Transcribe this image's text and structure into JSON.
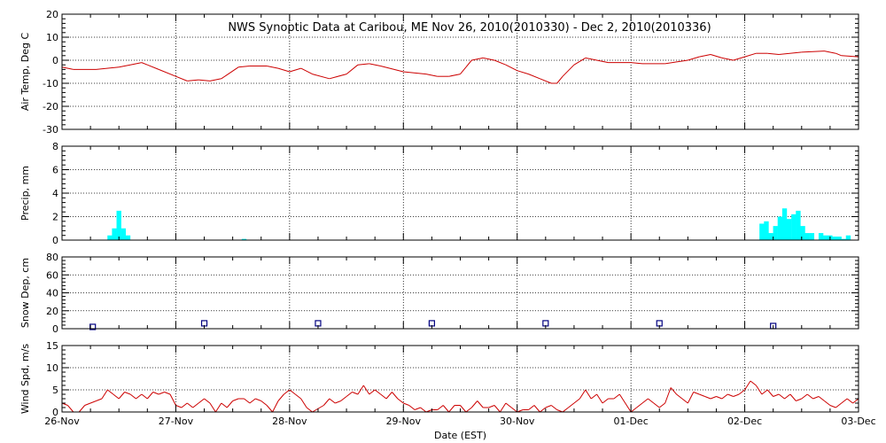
{
  "title": "NWS Synoptic Data at Caribou, ME   Nov 26, 2010(2010330) - Dec  2, 2010(2010336)",
  "xlabel": "Date (EST)",
  "x_ticks": [
    "26-Nov",
    "27-Nov",
    "28-Nov",
    "29-Nov",
    "30-Nov",
    "01-Dec",
    "02-Dec",
    "03-Dec"
  ],
  "colors": {
    "line": "#cc0000",
    "bar": "#00ffff",
    "marker": "#000080",
    "axes": "#000000",
    "grid": "#000000"
  },
  "chart_data": [
    {
      "type": "line",
      "ylabel": "Air Temp, Deg C",
      "ylim": [
        -30,
        20
      ],
      "y_ticks": [
        20,
        10,
        0,
        -10,
        -20,
        -30
      ],
      "x_unit": "days since 26-Nov 00:00 EST",
      "xlim": [
        0,
        7
      ],
      "grid": true,
      "series": [
        {
          "points": [
            [
              0.0,
              -3
            ],
            [
              0.1,
              -4
            ],
            [
              0.3,
              -4
            ],
            [
              0.5,
              -3
            ],
            [
              0.6,
              -2
            ],
            [
              0.7,
              -1
            ],
            [
              0.75,
              -2
            ],
            [
              0.85,
              -4
            ],
            [
              1.0,
              -7
            ],
            [
              1.1,
              -9
            ],
            [
              1.2,
              -8.5
            ],
            [
              1.3,
              -9
            ],
            [
              1.4,
              -8
            ],
            [
              1.55,
              -3
            ],
            [
              1.65,
              -2.5
            ],
            [
              1.8,
              -2.5
            ],
            [
              1.9,
              -3.5
            ],
            [
              2.0,
              -5
            ],
            [
              2.1,
              -3.5
            ],
            [
              2.2,
              -6
            ],
            [
              2.35,
              -8
            ],
            [
              2.5,
              -6
            ],
            [
              2.6,
              -2
            ],
            [
              2.7,
              -1.5
            ],
            [
              2.8,
              -2.5
            ],
            [
              3.0,
              -5
            ],
            [
              3.2,
              -6
            ],
            [
              3.3,
              -7
            ],
            [
              3.4,
              -7
            ],
            [
              3.5,
              -6
            ],
            [
              3.55,
              -3
            ],
            [
              3.6,
              0
            ],
            [
              3.7,
              1
            ],
            [
              3.8,
              0
            ],
            [
              3.9,
              -2
            ],
            [
              4.0,
              -4.5
            ],
            [
              4.1,
              -6
            ],
            [
              4.2,
              -8
            ],
            [
              4.3,
              -10
            ],
            [
              4.35,
              -10
            ],
            [
              4.4,
              -7
            ],
            [
              4.5,
              -2
            ],
            [
              4.6,
              1
            ],
            [
              4.7,
              0
            ],
            [
              4.8,
              -1
            ],
            [
              5.0,
              -1
            ],
            [
              5.1,
              -1.5
            ],
            [
              5.3,
              -1.5
            ],
            [
              5.5,
              0
            ],
            [
              5.6,
              1.5
            ],
            [
              5.7,
              2.5
            ],
            [
              5.8,
              1
            ],
            [
              5.9,
              0
            ],
            [
              6.0,
              1.5
            ],
            [
              6.1,
              3
            ],
            [
              6.2,
              3
            ],
            [
              6.3,
              2.5
            ],
            [
              6.5,
              3.5
            ],
            [
              6.7,
              4
            ],
            [
              6.8,
              3
            ],
            [
              6.85,
              2
            ],
            [
              7.0,
              1.5
            ]
          ]
        }
      ]
    },
    {
      "type": "bar",
      "ylabel": "Precip, mm",
      "ylim": [
        0,
        8
      ],
      "y_ticks": [
        8,
        6,
        4,
        2,
        0
      ],
      "x_unit": "days since 26-Nov 00:00 EST",
      "xlim": [
        0,
        7
      ],
      "grid": true,
      "bar_width_days": 0.0417,
      "series": [
        {
          "points": [
            [
              0.42,
              0.4
            ],
            [
              0.46,
              1.0
            ],
            [
              0.5,
              2.5
            ],
            [
              0.54,
              1.0
            ],
            [
              0.58,
              0.4
            ],
            [
              1.6,
              0.1
            ],
            [
              6.15,
              1.4
            ],
            [
              6.19,
              1.6
            ],
            [
              6.23,
              0.6
            ],
            [
              6.27,
              1.2
            ],
            [
              6.31,
              2.0
            ],
            [
              6.35,
              2.7
            ],
            [
              6.39,
              1.8
            ],
            [
              6.43,
              2.2
            ],
            [
              6.47,
              2.5
            ],
            [
              6.51,
              1.2
            ],
            [
              6.55,
              0.6
            ],
            [
              6.59,
              0.6
            ],
            [
              6.67,
              0.6
            ],
            [
              6.71,
              0.4
            ],
            [
              6.75,
              0.4
            ],
            [
              6.79,
              0.3
            ],
            [
              6.83,
              0.3
            ],
            [
              6.87,
              0.1
            ],
            [
              6.91,
              0.4
            ]
          ]
        }
      ]
    },
    {
      "type": "scatter",
      "ylabel": "Snow Dep, cm",
      "ylim": [
        0,
        80
      ],
      "y_ticks": [
        80,
        60,
        40,
        20,
        0
      ],
      "x_unit": "days since 26-Nov 00:00 EST",
      "xlim": [
        0,
        7
      ],
      "grid": true,
      "series": [
        {
          "points": [
            [
              0.27,
              2
            ],
            [
              1.25,
              6
            ],
            [
              2.25,
              6
            ],
            [
              3.25,
              6
            ],
            [
              4.25,
              6
            ],
            [
              5.25,
              6
            ],
            [
              6.25,
              3
            ]
          ]
        }
      ]
    },
    {
      "type": "line",
      "ylabel": "Wind Spd, m/s",
      "ylim": [
        0,
        15
      ],
      "y_ticks": [
        15,
        10,
        5,
        0
      ],
      "x_unit": "days since 26-Nov 00:00 EST",
      "xlim": [
        0,
        7
      ],
      "grid": true,
      "series": [
        {
          "points": [
            [
              0.0,
              2
            ],
            [
              0.05,
              1.5
            ],
            [
              0.1,
              0
            ],
            [
              0.15,
              0
            ],
            [
              0.2,
              1.5
            ],
            [
              0.3,
              2.5
            ],
            [
              0.35,
              3
            ],
            [
              0.4,
              5
            ],
            [
              0.45,
              4
            ],
            [
              0.5,
              3
            ],
            [
              0.55,
              4.5
            ],
            [
              0.6,
              4
            ],
            [
              0.65,
              3
            ],
            [
              0.7,
              4
            ],
            [
              0.75,
              3
            ],
            [
              0.8,
              4.5
            ],
            [
              0.85,
              4
            ],
            [
              0.9,
              4.5
            ],
            [
              0.95,
              4
            ],
            [
              1.0,
              1.5
            ],
            [
              1.05,
              1
            ],
            [
              1.1,
              2
            ],
            [
              1.15,
              1
            ],
            [
              1.2,
              2
            ],
            [
              1.25,
              3
            ],
            [
              1.3,
              2
            ],
            [
              1.35,
              0
            ],
            [
              1.4,
              2
            ],
            [
              1.45,
              1
            ],
            [
              1.5,
              2.5
            ],
            [
              1.55,
              3
            ],
            [
              1.6,
              3
            ],
            [
              1.65,
              2
            ],
            [
              1.7,
              3
            ],
            [
              1.75,
              2.5
            ],
            [
              1.8,
              1.5
            ],
            [
              1.85,
              0
            ],
            [
              1.9,
              2.5
            ],
            [
              1.95,
              4
            ],
            [
              2.0,
              5
            ],
            [
              2.05,
              4
            ],
            [
              2.1,
              3
            ],
            [
              2.15,
              1
            ],
            [
              2.2,
              0
            ],
            [
              2.3,
              1.5
            ],
            [
              2.35,
              3
            ],
            [
              2.4,
              2
            ],
            [
              2.45,
              2.5
            ],
            [
              2.5,
              3.5
            ],
            [
              2.55,
              4.5
            ],
            [
              2.6,
              4
            ],
            [
              2.65,
              6
            ],
            [
              2.7,
              4
            ],
            [
              2.75,
              5
            ],
            [
              2.8,
              4
            ],
            [
              2.85,
              3
            ],
            [
              2.9,
              4.5
            ],
            [
              2.95,
              3
            ],
            [
              3.0,
              2
            ],
            [
              3.05,
              1.5
            ],
            [
              3.1,
              0.5
            ],
            [
              3.15,
              1
            ],
            [
              3.2,
              0
            ],
            [
              3.25,
              0.5
            ],
            [
              3.3,
              0.5
            ],
            [
              3.35,
              1.5
            ],
            [
              3.4,
              0
            ],
            [
              3.45,
              1.5
            ],
            [
              3.5,
              1.5
            ],
            [
              3.55,
              0
            ],
            [
              3.6,
              1
            ],
            [
              3.65,
              2.5
            ],
            [
              3.7,
              1
            ],
            [
              3.75,
              1
            ],
            [
              3.8,
              1.5
            ],
            [
              3.85,
              0
            ],
            [
              3.9,
              2
            ],
            [
              3.95,
              1
            ],
            [
              4.0,
              0
            ],
            [
              4.05,
              0.5
            ],
            [
              4.1,
              0.5
            ],
            [
              4.15,
              1.5
            ],
            [
              4.2,
              0
            ],
            [
              4.25,
              1
            ],
            [
              4.3,
              1.5
            ],
            [
              4.35,
              0.5
            ],
            [
              4.4,
              0
            ],
            [
              4.45,
              1
            ],
            [
              4.5,
              2
            ],
            [
              4.55,
              3
            ],
            [
              4.6,
              5
            ],
            [
              4.65,
              3
            ],
            [
              4.7,
              4
            ],
            [
              4.75,
              2
            ],
            [
              4.8,
              3
            ],
            [
              4.85,
              3
            ],
            [
              4.9,
              4
            ],
            [
              4.95,
              2
            ],
            [
              5.0,
              0
            ],
            [
              5.05,
              1
            ],
            [
              5.1,
              2
            ],
            [
              5.15,
              3
            ],
            [
              5.2,
              2
            ],
            [
              5.25,
              1
            ],
            [
              5.3,
              2
            ],
            [
              5.35,
              5.5
            ],
            [
              5.4,
              4
            ],
            [
              5.45,
              3
            ],
            [
              5.5,
              2
            ],
            [
              5.55,
              4.5
            ],
            [
              5.6,
              4
            ],
            [
              5.65,
              3.5
            ],
            [
              5.7,
              3
            ],
            [
              5.75,
              3.5
            ],
            [
              5.8,
              3
            ],
            [
              5.85,
              4
            ],
            [
              5.9,
              3.5
            ],
            [
              5.95,
              4
            ],
            [
              6.0,
              5
            ],
            [
              6.05,
              7
            ],
            [
              6.1,
              6
            ],
            [
              6.15,
              4
            ],
            [
              6.2,
              5
            ],
            [
              6.25,
              3.5
            ],
            [
              6.3,
              4
            ],
            [
              6.35,
              3
            ],
            [
              6.4,
              4
            ],
            [
              6.45,
              2.5
            ],
            [
              6.5,
              3
            ],
            [
              6.55,
              4
            ],
            [
              6.6,
              3
            ],
            [
              6.65,
              3.5
            ],
            [
              6.7,
              2.5
            ],
            [
              6.75,
              1.5
            ],
            [
              6.8,
              1
            ],
            [
              6.85,
              2
            ],
            [
              6.9,
              3
            ],
            [
              6.95,
              2
            ],
            [
              7.0,
              3
            ]
          ]
        }
      ]
    }
  ]
}
